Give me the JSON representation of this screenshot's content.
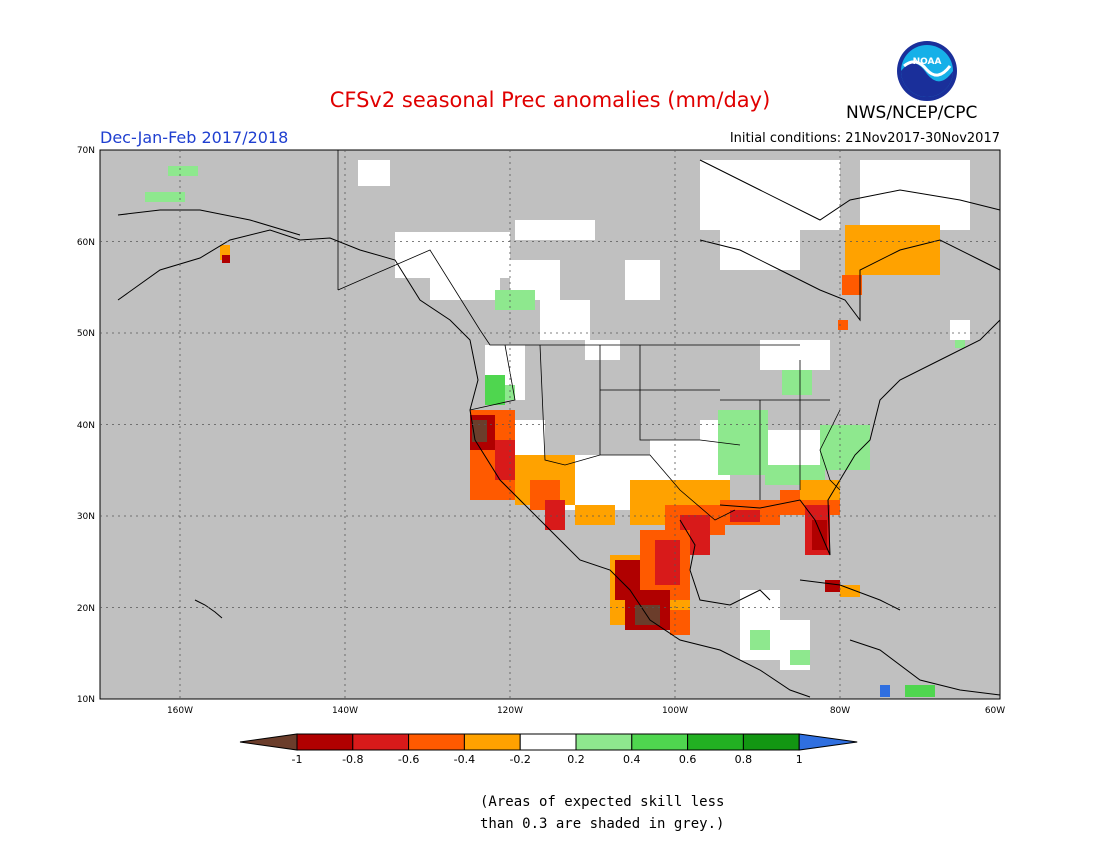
{
  "title": "CFSv2 seasonal Prec anomalies (mm/day)",
  "season_label": "Dec-Jan-Feb 2017/2018",
  "initial_conditions": "Initial conditions: 21Nov2017-30Nov2017",
  "agency": "NWS/NCEP/CPC",
  "logo_text": "NOAA",
  "lat_labels": [
    "70N",
    "60N",
    "50N",
    "40N",
    "30N",
    "20N",
    "10N"
  ],
  "lon_labels": [
    "160W",
    "140W",
    "120W",
    "100W",
    "80W",
    "60W"
  ],
  "colorbar": {
    "ticks": [
      "-1",
      "-0.8",
      "-0.6",
      "-0.4",
      "-0.2",
      "0.2",
      "0.4",
      "0.6",
      "0.8",
      "1"
    ],
    "colors": [
      "#6b3d2b",
      "#b00000",
      "#d81a1a",
      "#ff5a00",
      "#ffa200",
      "#ffffff",
      "#8ee88e",
      "#4fd64f",
      "#22b022",
      "#129612",
      "#2f6fe0"
    ]
  },
  "note": [
    "(Areas of expected skill less",
    "than 0.3 are shaded in grey.)"
  ],
  "colors": {
    "title": "#e00000",
    "season": "#1f3fd0",
    "grey_mask": "#c0c0c0"
  }
}
